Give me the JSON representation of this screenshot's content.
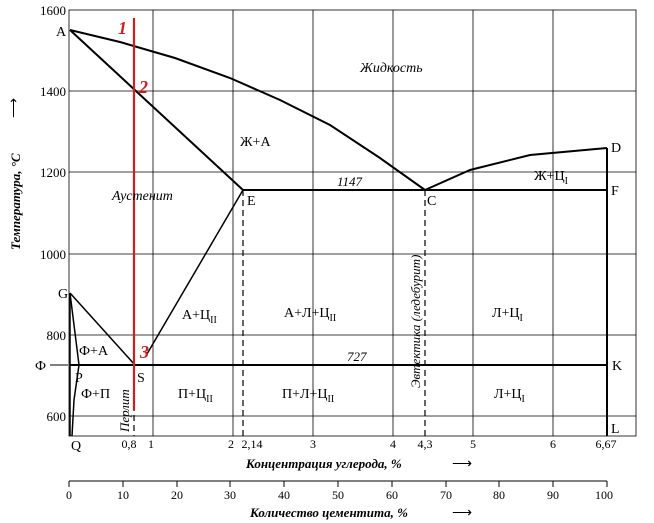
{
  "y_axis": {
    "title": "Температура, °С",
    "ticks": [
      "1600",
      "1400",
      "1200",
      "1000",
      "800",
      "600"
    ]
  },
  "x_axis": {
    "title": "Концентрация углерода, %",
    "ticks": [
      "0,8",
      "1",
      "2",
      "2,14",
      "3",
      "4",
      "4,3",
      "5",
      "6",
      "6,67"
    ]
  },
  "x_axis2": {
    "title": "Количество цементита, %",
    "ticks": [
      "0",
      "10",
      "20",
      "30",
      "40",
      "50",
      "60",
      "70",
      "80",
      "90",
      "100"
    ]
  },
  "points": {
    "A": "A",
    "D": "D",
    "E": "E",
    "C": "C",
    "F": "F",
    "G": "G",
    "P": "P",
    "S": "S",
    "K": "K",
    "Q": "Q",
    "L": "L",
    "phi": "Ф"
  },
  "regions": {
    "liquid": "Жидкость",
    "liquid_austenite": "Ж+А",
    "austenite": "Аустенит",
    "liquid_cem1": "Ж+Ц",
    "ferrite_austenite": "Ф+А",
    "austenite_cem2": "А+Ц",
    "austenite_led_cem2": "А+Л+Ц",
    "led_cem1_upper": "Л+Ц",
    "ferrite_pearlite": "Ф+П",
    "pearlite_cem2": "П+Ц",
    "pearlite_led_cem2": "П+Л+Ц",
    "led_cem1_lower": "Л+Ц",
    "sub_I": "I",
    "sub_II": "II"
  },
  "line_labels": {
    "t1147": "1147",
    "t727": "727",
    "pearlite": "Перлит",
    "eutectic": "Эвтектика (ледебурит)"
  },
  "markers": {
    "m1": "1",
    "m2": "2",
    "m3": "3"
  }
}
